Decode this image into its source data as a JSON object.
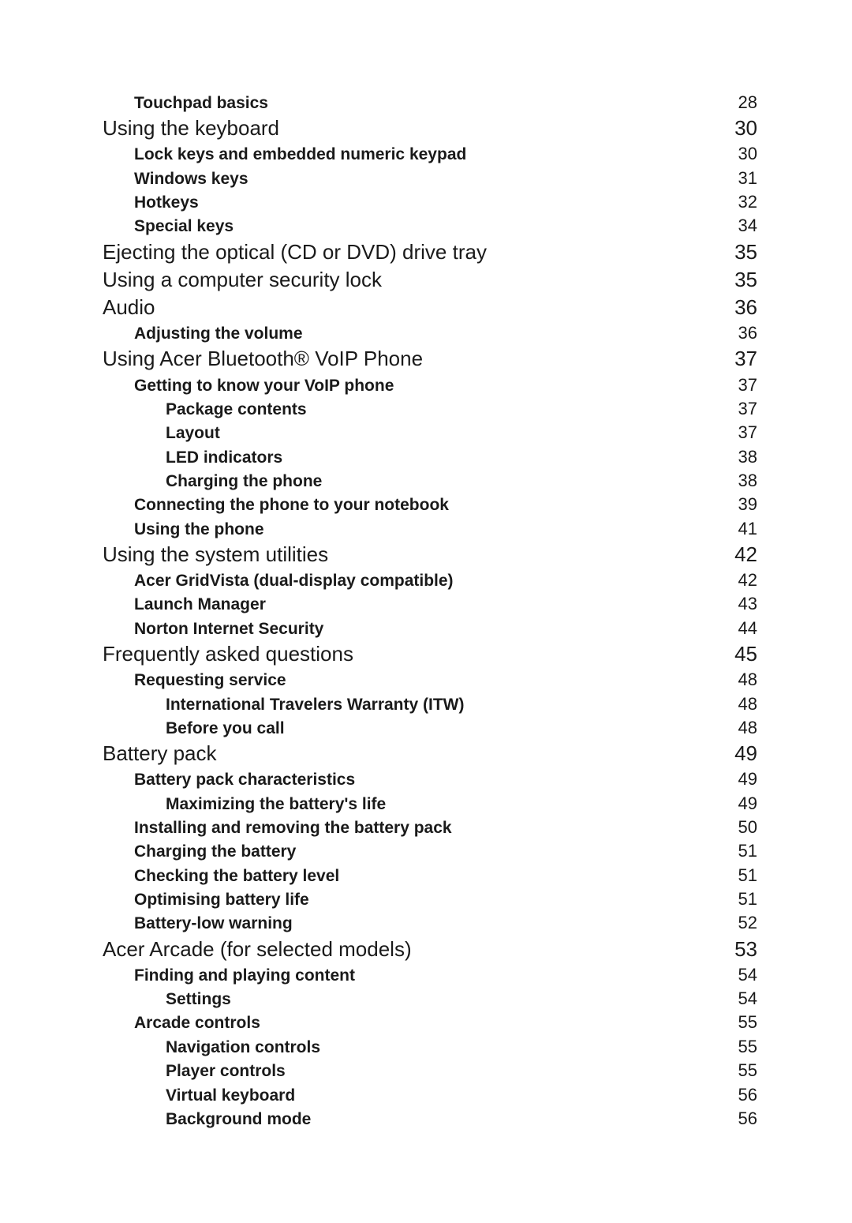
{
  "toc": [
    {
      "level": 1,
      "title": "Touchpad basics",
      "page": "28"
    },
    {
      "level": 0,
      "title": "Using the keyboard",
      "page": "30"
    },
    {
      "level": 1,
      "title": "Lock keys and embedded numeric keypad",
      "page": "30"
    },
    {
      "level": 1,
      "title": "Windows keys",
      "page": "31"
    },
    {
      "level": 1,
      "title": "Hotkeys",
      "page": "32"
    },
    {
      "level": 1,
      "title": "Special keys",
      "page": "34"
    },
    {
      "level": 0,
      "title": "Ejecting the optical (CD or DVD) drive tray",
      "page": "35"
    },
    {
      "level": 0,
      "title": "Using a computer security lock",
      "page": "35"
    },
    {
      "level": 0,
      "title": "Audio",
      "page": "36"
    },
    {
      "level": 1,
      "title": "Adjusting the volume",
      "page": "36"
    },
    {
      "level": 0,
      "title": "Using Acer Bluetooth® VoIP Phone",
      "page": "37"
    },
    {
      "level": 1,
      "title": "Getting to know your VoIP phone",
      "page": "37"
    },
    {
      "level": 2,
      "title": "Package contents",
      "page": "37"
    },
    {
      "level": 2,
      "title": "Layout",
      "page": "37"
    },
    {
      "level": 2,
      "title": "LED indicators",
      "page": "38"
    },
    {
      "level": 2,
      "title": "Charging the phone",
      "page": "38"
    },
    {
      "level": 1,
      "title": "Connecting the phone to your notebook",
      "page": "39"
    },
    {
      "level": 1,
      "title": "Using the phone",
      "page": "41"
    },
    {
      "level": 0,
      "title": "Using the system utilities",
      "page": "42"
    },
    {
      "level": 1,
      "title": "Acer GridVista (dual-display compatible)",
      "page": "42"
    },
    {
      "level": 1,
      "title": "Launch Manager",
      "page": "43"
    },
    {
      "level": 1,
      "title": "Norton Internet Security",
      "page": "44"
    },
    {
      "level": 0,
      "title": "Frequently asked questions",
      "page": "45"
    },
    {
      "level": 1,
      "title": "Requesting service",
      "page": "48"
    },
    {
      "level": 2,
      "title": "International Travelers Warranty (ITW)",
      "page": "48"
    },
    {
      "level": 2,
      "title": "Before you call",
      "page": "48"
    },
    {
      "level": 0,
      "title": "Battery pack",
      "page": "49"
    },
    {
      "level": 1,
      "title": "Battery pack characteristics",
      "page": "49"
    },
    {
      "level": 2,
      "title": "Maximizing the battery's life",
      "page": "49"
    },
    {
      "level": 1,
      "title": "Installing and removing the battery pack",
      "page": "50"
    },
    {
      "level": 1,
      "title": "Charging the battery",
      "page": "51"
    },
    {
      "level": 1,
      "title": "Checking the battery level",
      "page": "51"
    },
    {
      "level": 1,
      "title": "Optimising battery life",
      "page": "51"
    },
    {
      "level": 1,
      "title": "Battery-low warning",
      "page": "52"
    },
    {
      "level": 0,
      "title": "Acer Arcade (for selected models)",
      "page": "53"
    },
    {
      "level": 1,
      "title": "Finding and playing content",
      "page": "54"
    },
    {
      "level": 2,
      "title": "Settings",
      "page": "54"
    },
    {
      "level": 1,
      "title": "Arcade controls",
      "page": "55"
    },
    {
      "level": 2,
      "title": "Navigation controls",
      "page": "55"
    },
    {
      "level": 2,
      "title": "Player controls",
      "page": "55"
    },
    {
      "level": 2,
      "title": "Virtual keyboard",
      "page": "56"
    },
    {
      "level": 2,
      "title": "Background mode",
      "page": "56"
    }
  ]
}
